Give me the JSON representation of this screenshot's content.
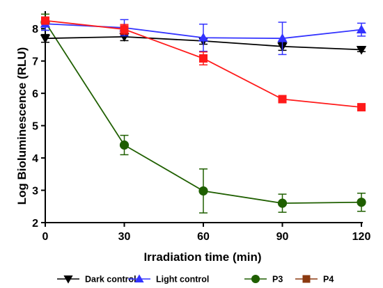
{
  "chart_data": {
    "type": "line",
    "xlabel": "Irradiation time (min)",
    "ylabel": "Log Bioluminescence (RLU)",
    "x": [
      0,
      30,
      60,
      90,
      120
    ],
    "xlim": [
      0,
      120
    ],
    "ylim": [
      2,
      8.5
    ],
    "xticks": [
      0,
      30,
      60,
      90,
      120
    ],
    "yticks": [
      2,
      3,
      4,
      5,
      6,
      7,
      8
    ],
    "grid": false,
    "legend_position": "bottom",
    "series": [
      {
        "name": "Dark control",
        "color": "#000000",
        "marker": "triangle-down",
        "values": [
          7.7,
          7.75,
          7.62,
          7.45,
          7.35
        ],
        "errors": [
          0.12,
          0.12,
          0.1,
          0.12,
          0.06
        ]
      },
      {
        "name": "Light control",
        "color": "#3333ff",
        "marker": "triangle-up",
        "values": [
          8.15,
          8.03,
          7.72,
          7.7,
          7.97
        ],
        "errors": [
          0.2,
          0.25,
          0.42,
          0.5,
          0.2
        ]
      },
      {
        "name": "P3",
        "color": "#1f5f00",
        "marker": "circle",
        "values": [
          8.2,
          4.4,
          2.98,
          2.6,
          2.63
        ],
        "errors": [
          0.25,
          0.3,
          0.68,
          0.28,
          0.28
        ]
      },
      {
        "name": "P4",
        "color": "#ff1a1a",
        "legend_color": "#8b3a10",
        "marker": "square",
        "values": [
          8.25,
          7.98,
          7.08,
          5.82,
          5.57
        ],
        "errors": [
          0.1,
          0.15,
          0.2,
          0.05,
          0.04
        ]
      }
    ]
  }
}
